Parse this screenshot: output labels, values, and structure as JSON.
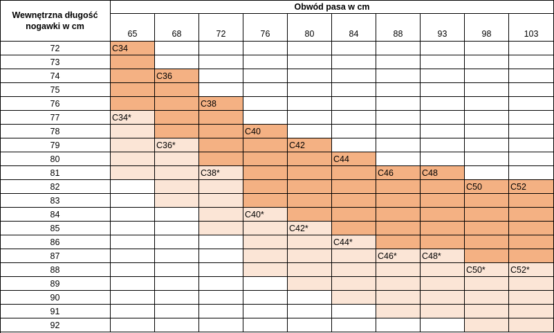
{
  "header": {
    "length_label_line1": "Wewnętrzna długość",
    "length_label_line2": "nogawki w cm",
    "waist_label": "Obwód pasa w cm"
  },
  "waist_values": [
    "65",
    "68",
    "72",
    "76",
    "80",
    "84",
    "88",
    "93",
    "98",
    "103"
  ],
  "length_values": [
    "72",
    "73",
    "74",
    "75",
    "76",
    "77",
    "78",
    "79",
    "80",
    "81",
    "82",
    "83",
    "84",
    "85",
    "86",
    "87",
    "88",
    "89",
    "90",
    "91",
    "92"
  ],
  "colors": {
    "dark": "#f4b183",
    "light": "#fbe5d6",
    "border": "#000000"
  },
  "sizes": [
    {
      "label": "C34",
      "tone": "dark",
      "start_col": 0,
      "cols": 1,
      "start_row": 0,
      "rows": 5
    },
    {
      "label": "C36",
      "tone": "dark",
      "start_col": 1,
      "cols": 1,
      "start_row": 2,
      "rows": 5
    },
    {
      "label": "C38",
      "tone": "dark",
      "start_col": 2,
      "cols": 1,
      "start_row": 4,
      "rows": 5
    },
    {
      "label": "C40",
      "tone": "dark",
      "start_col": 3,
      "cols": 1,
      "start_row": 6,
      "rows": 6
    },
    {
      "label": "C42",
      "tone": "dark",
      "start_col": 4,
      "cols": 1,
      "start_row": 7,
      "rows": 6
    },
    {
      "label": "C44",
      "tone": "dark",
      "start_col": 5,
      "cols": 1,
      "start_row": 8,
      "rows": 6
    },
    {
      "label": "C46",
      "tone": "dark",
      "start_col": 6,
      "cols": 1,
      "start_row": 9,
      "rows": 6
    },
    {
      "label": "C48",
      "tone": "dark",
      "start_col": 7,
      "cols": 1,
      "start_row": 9,
      "rows": 6
    },
    {
      "label": "C50",
      "tone": "dark",
      "start_col": 8,
      "cols": 1,
      "start_row": 10,
      "rows": 6
    },
    {
      "label": "C52",
      "tone": "dark",
      "start_col": 9,
      "cols": 1,
      "start_row": 10,
      "rows": 6
    },
    {
      "label": "C34*",
      "tone": "light",
      "start_col": 0,
      "cols": 1,
      "start_row": 5,
      "rows": 5
    },
    {
      "label": "C36*",
      "tone": "light",
      "start_col": 1,
      "cols": 1,
      "start_row": 7,
      "rows": 5
    },
    {
      "label": "C38*",
      "tone": "light",
      "start_col": 2,
      "cols": 1,
      "start_row": 9,
      "rows": 5
    },
    {
      "label": "C40*",
      "tone": "light",
      "start_col": 3,
      "cols": 1,
      "start_row": 12,
      "rows": 5
    },
    {
      "label": "C42*",
      "tone": "light",
      "start_col": 4,
      "cols": 1,
      "start_row": 13,
      "rows": 5
    },
    {
      "label": "C44*",
      "tone": "light",
      "start_col": 5,
      "cols": 1,
      "start_row": 14,
      "rows": 5
    },
    {
      "label": "C46*",
      "tone": "light",
      "start_col": 6,
      "cols": 1,
      "start_row": 15,
      "rows": 5
    },
    {
      "label": "C48*",
      "tone": "light",
      "start_col": 7,
      "cols": 1,
      "start_row": 15,
      "rows": 5
    },
    {
      "label": "C50*",
      "tone": "light",
      "start_col": 8,
      "cols": 1,
      "start_row": 16,
      "rows": 5
    },
    {
      "label": "C52*",
      "tone": "light",
      "start_col": 9,
      "cols": 1,
      "start_row": 16,
      "rows": 5
    }
  ]
}
